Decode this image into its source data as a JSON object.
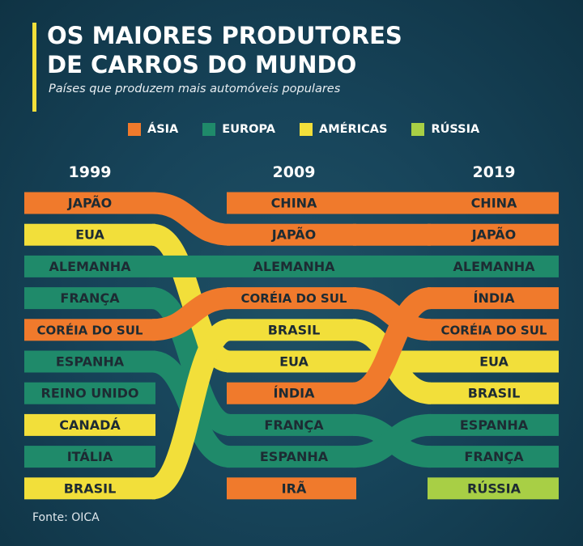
{
  "header": {
    "title_line1": "OS MAIORES PRODUTORES",
    "title_line2": "DE CARROS DO MUNDO",
    "subtitle": "Países que produzem mais automóveis populares"
  },
  "legend": [
    {
      "label": "ÁSIA",
      "color": "#f07a2c"
    },
    {
      "label": "EUROPA",
      "color": "#1f8a6a"
    },
    {
      "label": "AMÉRICAS",
      "color": "#f2df3a"
    },
    {
      "label": "RÚSSIA",
      "color": "#a8cf45"
    }
  ],
  "source": "Fonte: OICA",
  "chart_data": {
    "type": "table",
    "years": [
      "1999",
      "2009",
      "2019"
    ],
    "region_colors": {
      "asia": "#f07a2c",
      "europa": "#1f8a6a",
      "americas": "#f2df3a",
      "russia": "#a8cf45"
    },
    "rankings": [
      {
        "country": "JAPÃO",
        "region": "asia",
        "ranks": [
          1,
          2,
          2
        ]
      },
      {
        "country": "EUA",
        "region": "americas",
        "ranks": [
          2,
          6,
          6
        ]
      },
      {
        "country": "ALEMANHA",
        "region": "europa",
        "ranks": [
          3,
          3,
          3
        ]
      },
      {
        "country": "FRANÇA",
        "region": "europa",
        "ranks": [
          4,
          8,
          9
        ]
      },
      {
        "country": "CORÉIA DO SUL",
        "region": "asia",
        "ranks": [
          5,
          4,
          5
        ]
      },
      {
        "country": "ESPANHA",
        "region": "europa",
        "ranks": [
          6,
          9,
          8
        ]
      },
      {
        "country": "REINO UNIDO",
        "region": "europa",
        "ranks": [
          7,
          null,
          null
        ]
      },
      {
        "country": "CANADÁ",
        "region": "americas",
        "ranks": [
          8,
          null,
          null
        ]
      },
      {
        "country": "ITÁLIA",
        "region": "europa",
        "ranks": [
          9,
          null,
          null
        ]
      },
      {
        "country": "BRASIL",
        "region": "americas",
        "ranks": [
          10,
          5,
          7
        ]
      },
      {
        "country": "CHINA",
        "region": "asia",
        "ranks": [
          null,
          1,
          1
        ]
      },
      {
        "country": "ÍNDIA",
        "region": "asia",
        "ranks": [
          null,
          7,
          4
        ]
      },
      {
        "country": "IRÃ",
        "region": "asia",
        "ranks": [
          null,
          10,
          null
        ]
      },
      {
        "country": "RÚSSIA",
        "region": "russia",
        "ranks": [
          null,
          null,
          10
        ]
      }
    ]
  }
}
